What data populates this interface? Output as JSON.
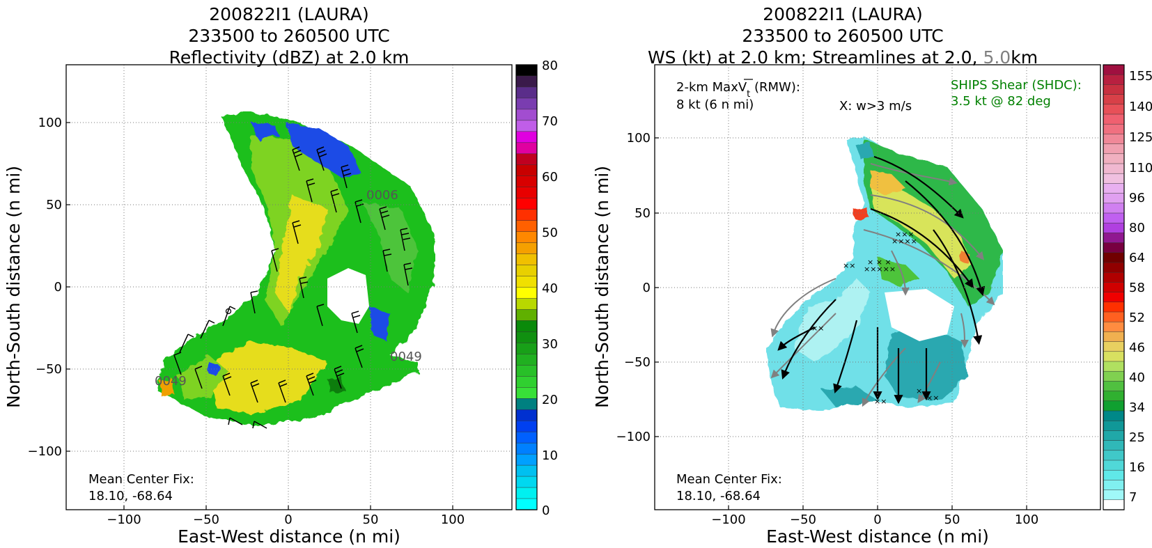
{
  "left_panel": {
    "title_lines": [
      "200822I1 (LAURA)",
      "233500 to 260500 UTC",
      "Reflectivity (dBZ) at 2.0 km"
    ],
    "xlabel": "East-West distance (n mi)",
    "ylabel": "North-South distance (n mi)",
    "x_ticks": [
      "−100",
      "−50",
      "0",
      "50",
      "100"
    ],
    "y_ticks": [
      "100",
      "50",
      "0",
      "−50",
      "−100"
    ],
    "center_fix_label": "Mean Center Fix:",
    "center_fix_value": "18.10, -68.64",
    "flight_labels": [
      "0006",
      "0049",
      "0049"
    ],
    "colorbar_ticks": [
      "80",
      "70",
      "60",
      "50",
      "40",
      "30",
      "20",
      "10",
      "0"
    ]
  },
  "right_panel": {
    "title_lines": [
      "200822I1 (LAURA)",
      "233500 to 260500 UTC"
    ],
    "title_line3_a": "WS (kt) at 2.0 km; Streamlines at 2.0,",
    "title_line3_b": "5.0",
    "title_line3_c": "km",
    "xlabel": "East-West distance (n mi)",
    "ylabel": "North-South distance (n mi)",
    "x_ticks": [
      "−100",
      "−50",
      "0",
      "50",
      "100"
    ],
    "y_ticks": [
      "100",
      "50",
      "0",
      "−50",
      "−100"
    ],
    "maxvt_label": "2-km MaxV",
    "maxvt_sub": "t",
    "maxvt_suffix": " (RMW):",
    "maxvt_value": "8 kt (6 n mi)",
    "w_marker_note": "X: w>3 m/s",
    "ships_label": "SHIPS Shear (SHDC):",
    "ships_value": "3.5 kt @ 82 deg",
    "center_fix_label": "Mean Center Fix:",
    "center_fix_value": "18.10, -68.64",
    "colorbar_ticks": [
      "155",
      "140",
      "125",
      "110",
      "96",
      "80",
      "64",
      "58",
      "52",
      "46",
      "40",
      "34",
      "25",
      "16",
      "7"
    ]
  },
  "colors": {
    "ships_text": "#008000",
    "streamline_2km": "#000000",
    "streamline_5km": "#808080"
  },
  "chart_data": [
    {
      "type": "heatmap",
      "title": "200822I1 (LAURA) 233500 to 260500 UTC Reflectivity (dBZ) at 2.0 km",
      "xlabel": "East-West distance (n mi)",
      "ylabel": "North-South distance (n mi)",
      "xlim": [
        -135,
        135
      ],
      "ylim": [
        -135,
        135
      ],
      "colorbar_range": [
        0,
        80
      ],
      "colorbar_units": "dBZ",
      "grid": true,
      "center_fix": [
        18.1,
        -68.64
      ]
    },
    {
      "type": "heatmap",
      "title": "200822I1 (LAURA) 233500 to 260500 UTC WS (kt) at 2.0 km; Streamlines at 2.0, 5.0 km",
      "xlabel": "East-West distance (n mi)",
      "ylabel": "North-South distance (n mi)",
      "xlim": [
        -148,
        148
      ],
      "ylim": [
        -148,
        148
      ],
      "colorbar_ticks": [
        7,
        16,
        25,
        34,
        40,
        46,
        52,
        58,
        64,
        80,
        96,
        110,
        125,
        140,
        155
      ],
      "colorbar_units": "kt",
      "grid": true,
      "max_vt_kt": 8,
      "rmw_nmi": 6,
      "ships_shear_kt": 3.5,
      "ships_shear_deg": 82,
      "center_fix": [
        18.1,
        -68.64
      ]
    }
  ]
}
